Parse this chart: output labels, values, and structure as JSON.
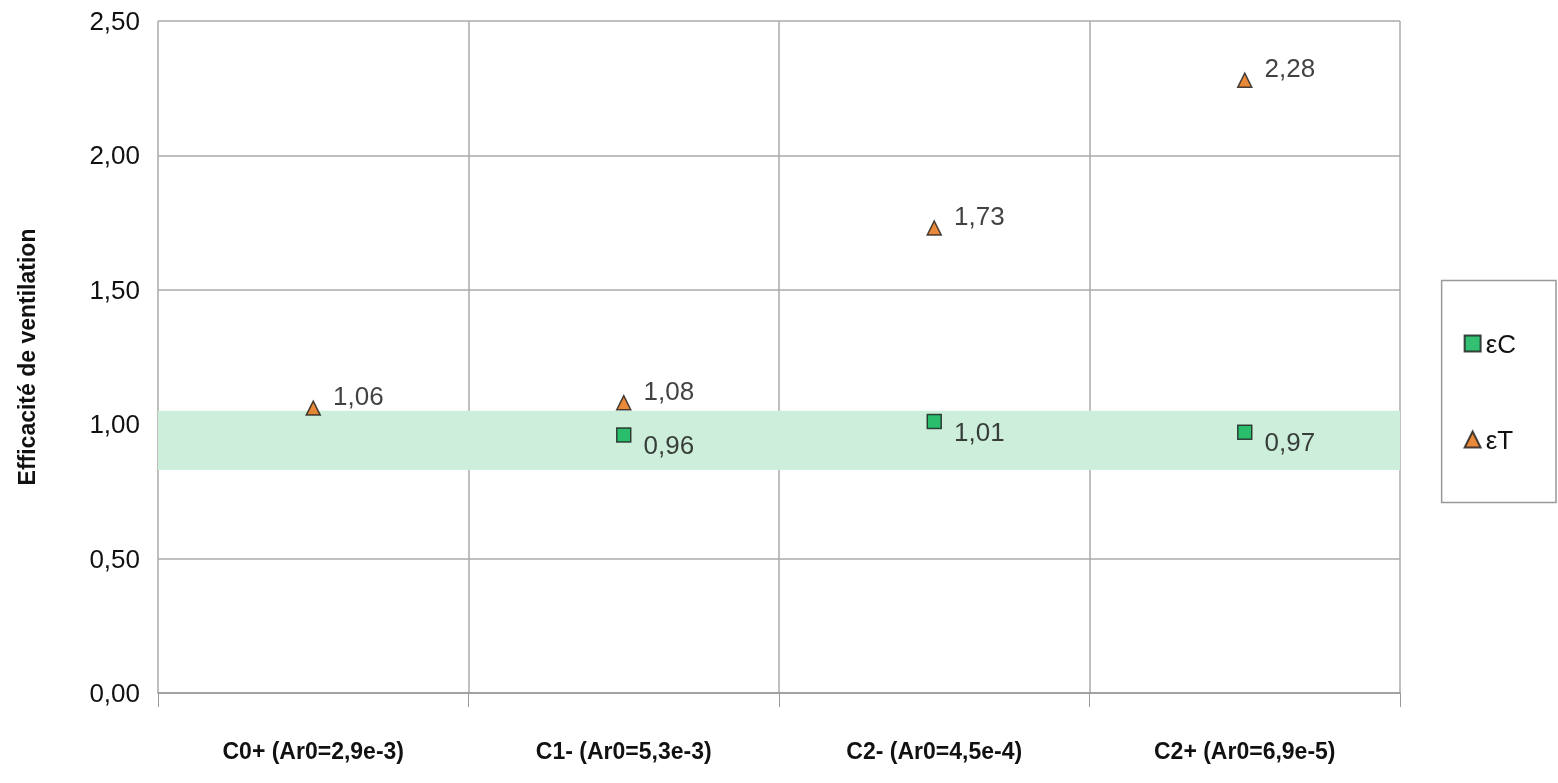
{
  "chart_data": {
    "type": "scatter",
    "ylabel": "Efficacité de ventilation",
    "categories": [
      "C0+ (Ar0=2,9e-3)",
      "C1- (Ar0=5,3e-3)",
      "C2- (Ar0=4,5e-4)",
      "C2+ (Ar0=6,9e-5)"
    ],
    "series": [
      {
        "name": "εC",
        "color": "#00b050",
        "marker": "square",
        "values": [
          null,
          0.96,
          1.01,
          0.97
        ],
        "value_labels": [
          null,
          "0,96",
          "1,01",
          "0,97"
        ]
      },
      {
        "name": "εT",
        "color": "#e46c0a",
        "marker": "triangle",
        "values": [
          1.06,
          1.08,
          1.73,
          2.28
        ],
        "value_labels": [
          "1,06",
          "1,08",
          "1,73",
          "2,28"
        ]
      }
    ],
    "ylim": [
      0,
      2.5
    ],
    "yticks": [
      {
        "value": 0,
        "label": "0,00"
      },
      {
        "value": 0.5,
        "label": "0,50"
      },
      {
        "value": 1,
        "label": "1,00"
      },
      {
        "value": 1.5,
        "label": "1,50"
      },
      {
        "value": 2,
        "label": "2,00"
      },
      {
        "value": 2.5,
        "label": "2,50"
      }
    ],
    "bands": [
      {
        "axis": "y",
        "from": 0.83,
        "to": 1.05,
        "color": "#cdeedb"
      }
    ],
    "grid": true,
    "legend": "right"
  }
}
